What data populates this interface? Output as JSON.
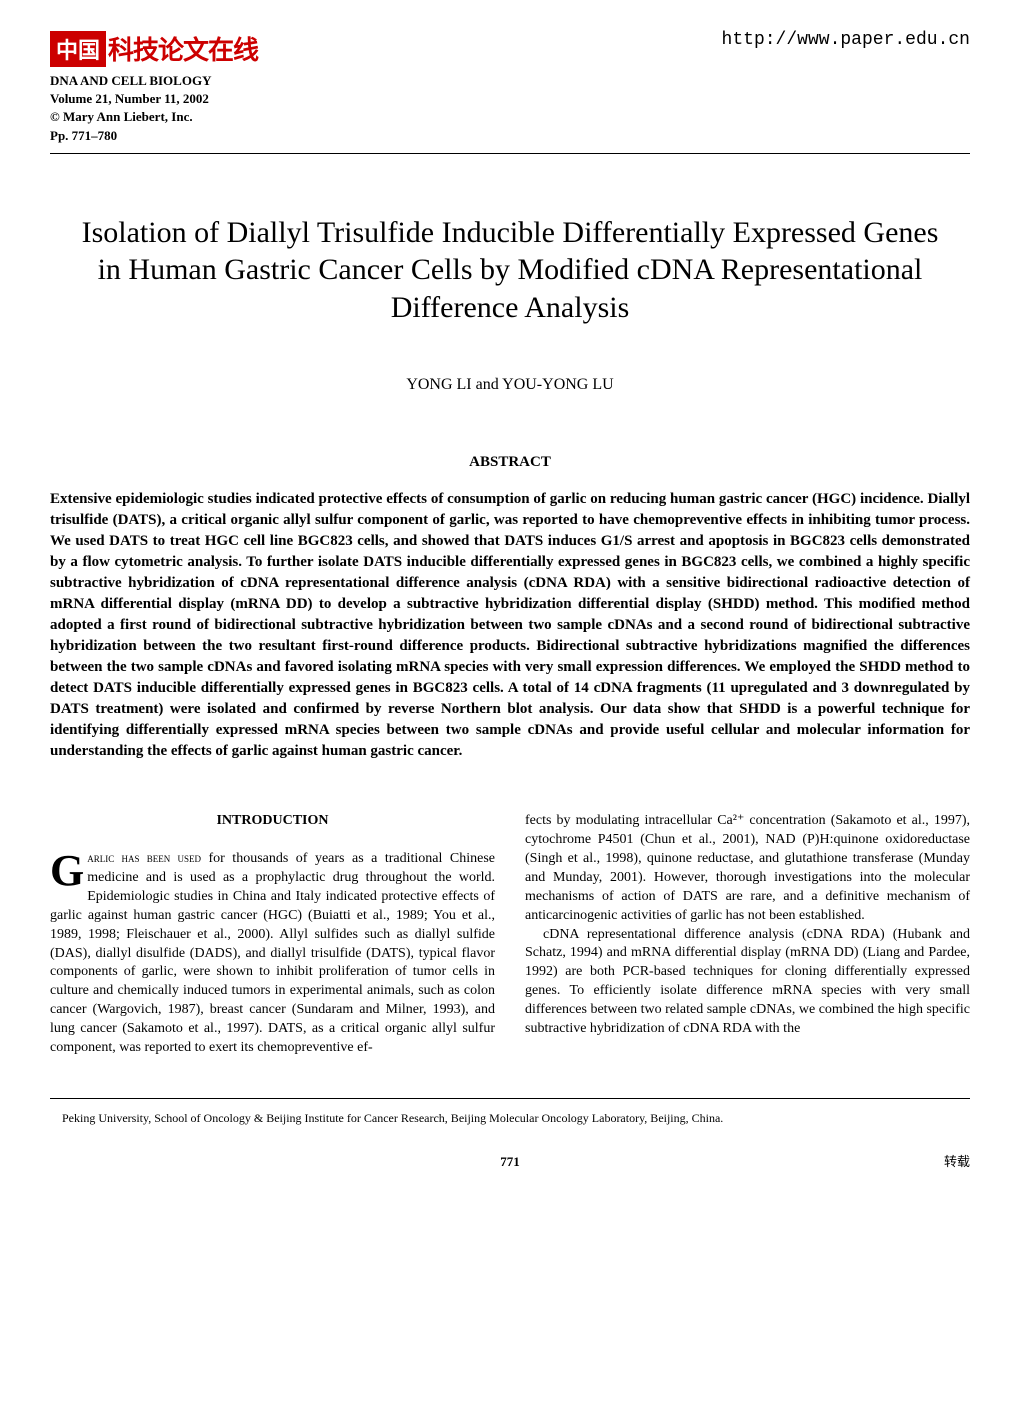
{
  "header": {
    "logo_box": "中国",
    "logo_text": "科技论文在线",
    "url": "http://www.paper.edu.cn"
  },
  "journal": {
    "line1": "DNA AND CELL BIOLOGY",
    "line2": "Volume 21, Number 11, 2002",
    "line3": "© Mary Ann Liebert, Inc.",
    "line4": "Pp. 771–780"
  },
  "title": "Isolation of Diallyl Trisulfide Inducible Differentially Expressed Genes in Human Gastric Cancer Cells by Modified cDNA Representational Difference Analysis",
  "authors": "YONG LI and YOU-YONG LU",
  "abstract": {
    "header": "ABSTRACT",
    "body": "Extensive epidemiologic studies indicated protective effects of consumption of garlic on reducing human gastric cancer (HGC) incidence. Diallyl trisulfide (DATS), a critical organic allyl sulfur component of garlic, was reported to have chemopreventive effects in inhibiting tumor process. We used DATS to treat HGC cell line BGC823 cells, and showed that DATS induces G1/S arrest and apoptosis in BGC823 cells demonstrated by a flow cytometric analysis. To further isolate DATS inducible differentially expressed genes in BGC823 cells, we combined a highly specific subtractive hybridization of cDNA representational difference analysis (cDNA RDA) with a sensitive bidirectional radioactive detection of mRNA differential display (mRNA DD) to develop a subtractive hybridization differential display (SHDD) method. This modified method adopted a first round of bidirectional subtractive hybridization between two sample cDNAs and a second round of bidirectional subtractive hybridization between the two resultant first-round difference products. Bidirectional subtractive hybridizations magnified the differences between the two sample cDNAs and favored isolating mRNA species with very small expression differences. We employed the SHDD method to detect DATS inducible differentially expressed genes in BGC823 cells. A total of 14 cDNA fragments (11 upregulated and 3 downregulated by DATS treatment) were isolated and confirmed by reverse Northern blot analysis. Our data show that SHDD is a powerful technique for identifying differentially expressed mRNA species between two sample cDNAs and provide useful cellular and molecular information for understanding the effects of garlic against human gastric cancer."
  },
  "body": {
    "section_header": "INTRODUCTION",
    "left_col": {
      "dropcap": "G",
      "smallcaps": "arlic has been used",
      "para1_rest": " for thousands of years as a traditional Chinese medicine and is used as a prophylactic drug throughout the world. Epidemiologic studies in China and Italy indicated protective effects of garlic against human gastric cancer (HGC) (Buiatti et al., 1989; You et al., 1989, 1998; Fleischauer et al., 2000). Allyl sulfides such as diallyl sulfide (DAS), diallyl disulfide (DADS), and diallyl trisulfide (DATS), typical flavor components of garlic, were shown to inhibit proliferation of tumor cells in culture and chemically induced tumors in experimental animals, such as colon cancer (Wargovich, 1987), breast cancer (Sundaram and Milner, 1993), and lung cancer (Sakamoto et al., 1997). DATS, as a critical organic allyl sulfur component, was reported to exert its chemopreventive ef-"
    },
    "right_col": {
      "para1": "fects by modulating intracellular Ca²⁺ concentration (Sakamoto et al., 1997), cytochrome P4501 (Chun et al., 2001), NAD (P)H:quinone oxidoreductase (Singh et al., 1998), quinone reductase, and glutathione transferase (Munday and Munday, 2001). However, thorough investigations into the molecular mechanisms of action of DATS are rare, and a definitive mechanism of anticarcinogenic activities of garlic has not been established.",
      "para2": "cDNA representational difference analysis (cDNA RDA) (Hubank and Schatz, 1994) and mRNA differential display (mRNA DD) (Liang and Pardee, 1992) are both PCR-based techniques for cloning differentially expressed genes. To efficiently isolate difference mRNA species with very small differences between two related sample cDNAs, we combined the high specific subtractive hybridization of cDNA RDA with the"
    }
  },
  "affiliation": "Peking University, School of Oncology & Beijing Institute for Cancer Research, Beijing Molecular Oncology Laboratory, Beijing, China.",
  "footer": {
    "page_number": "771",
    "reprint": "转载"
  }
}
